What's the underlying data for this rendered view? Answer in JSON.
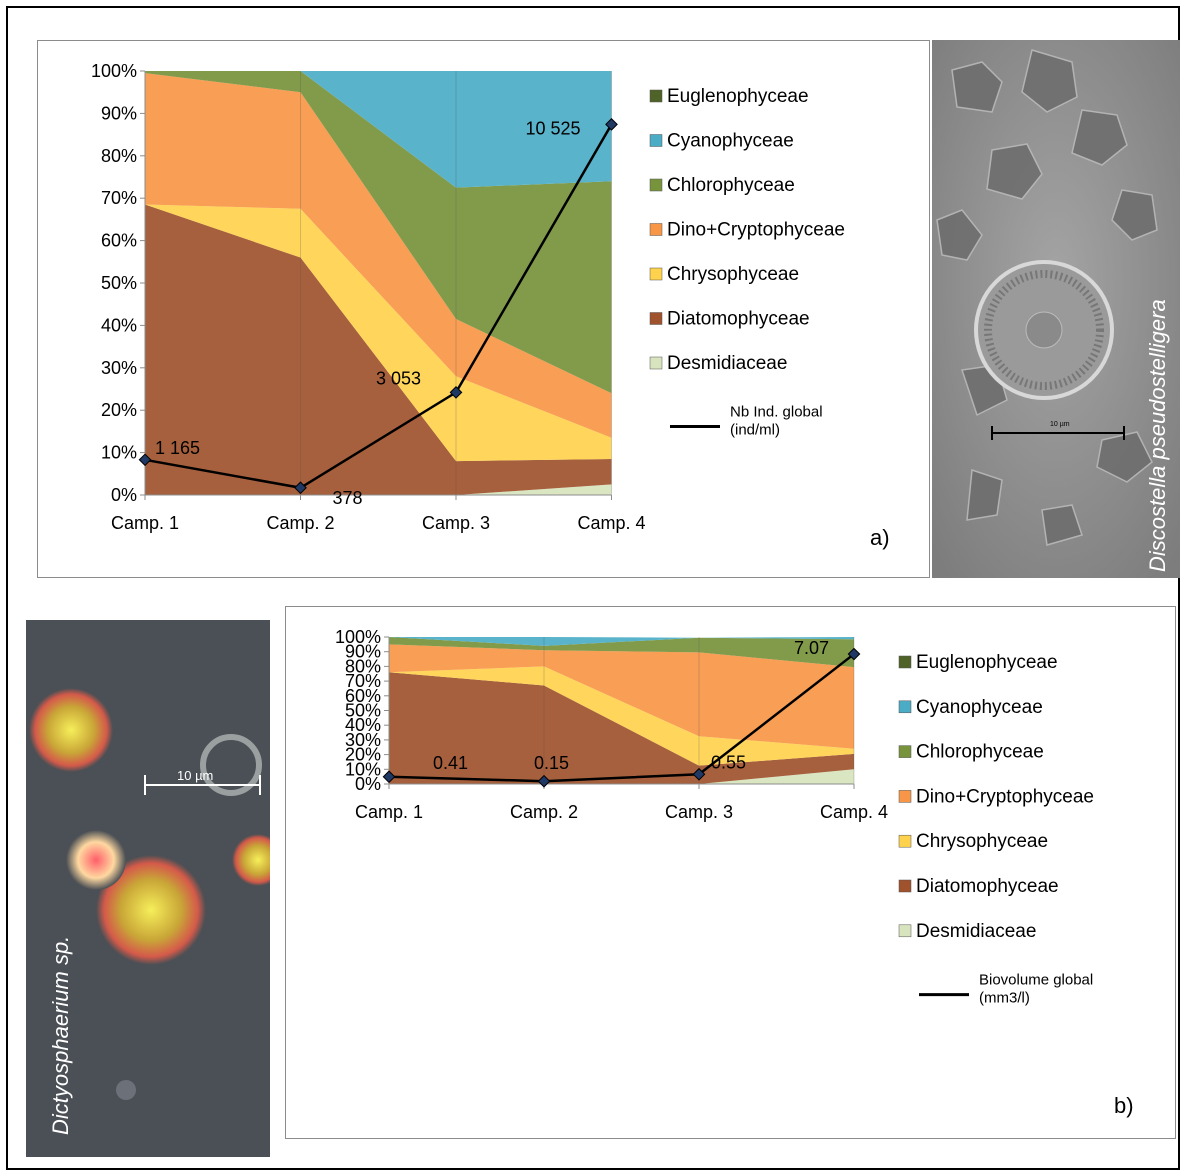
{
  "chart_data": [
    {
      "type": "area",
      "panel_label": "a)",
      "categories": [
        "Camp. 1",
        "Camp. 2",
        "Camp. 3",
        "Camp. 4"
      ],
      "ylim": [
        0,
        100
      ],
      "yticks": [
        "0%",
        "10%",
        "20%",
        "30%",
        "40%",
        "50%",
        "60%",
        "70%",
        "80%",
        "90%",
        "100%"
      ],
      "stacked_percent": true,
      "series": [
        {
          "name": "Desmidiaceae",
          "color": "#d7e4bd",
          "values": [
            0,
            0,
            0,
            2.5
          ]
        },
        {
          "name": "Diatomophyceae",
          "color": "#a0522d",
          "values": [
            68.5,
            56,
            8,
            6
          ]
        },
        {
          "name": "Chrysophyceae",
          "color": "#ffd24d",
          "values": [
            0,
            11.5,
            20,
            5
          ]
        },
        {
          "name": "Dino+Cryptophyceae",
          "color": "#f79646",
          "values": [
            31,
            27.5,
            13.5,
            10.5
          ]
        },
        {
          "name": "Chlorophyceae",
          "color": "#77933c",
          "values": [
            0.5,
            5,
            31,
            50
          ]
        },
        {
          "name": "Cyanophyceae",
          "color": "#4bacc6",
          "values": [
            0,
            0,
            27.5,
            26
          ]
        },
        {
          "name": "Euglenophyceae",
          "color": "#4f6228",
          "values": [
            0,
            0,
            0,
            0
          ]
        }
      ],
      "line": {
        "name": "Nb Ind. global (ind/ml)",
        "legend_label": [
          "Nb Ind. global",
          "(ind/ml)"
        ],
        "values_pct_axis": [
          8.3,
          1.7,
          24.2,
          87.4
        ],
        "labels": [
          "1 165",
          "378",
          "3 053",
          "10 525"
        ]
      }
    },
    {
      "type": "area",
      "panel_label": "b)",
      "categories": [
        "Camp. 1",
        "Camp. 2",
        "Camp. 3",
        "Camp. 4"
      ],
      "ylim": [
        0,
        100
      ],
      "yticks": [
        "0%",
        "10%",
        "20%",
        "30%",
        "40%",
        "50%",
        "60%",
        "70%",
        "80%",
        "90%",
        "100%"
      ],
      "stacked_percent": true,
      "series": [
        {
          "name": "Desmidiaceae",
          "color": "#d7e4bd",
          "values": [
            0,
            0,
            0,
            10
          ]
        },
        {
          "name": "Diatomophyceae",
          "color": "#a0522d",
          "values": [
            76,
            67,
            12.5,
            10.5
          ]
        },
        {
          "name": "Chrysophyceae",
          "color": "#ffd24d",
          "values": [
            0,
            13,
            20,
            3.5
          ]
        },
        {
          "name": "Dino+Cryptophyceae",
          "color": "#f79646",
          "values": [
            19,
            11,
            57,
            55.5
          ]
        },
        {
          "name": "Chlorophyceae",
          "color": "#77933c",
          "values": [
            5,
            3,
            10,
            19
          ]
        },
        {
          "name": "Cyanophyceae",
          "color": "#4bacc6",
          "values": [
            0,
            6,
            0,
            1.5
          ]
        },
        {
          "name": "Euglenophyceae",
          "color": "#4f6228",
          "values": [
            0,
            0,
            0,
            0
          ]
        }
      ],
      "line": {
        "name": "Biovolume global (mm3/l)",
        "legend_label": [
          "Biovolume  global",
          "(mm3/l)"
        ],
        "values_pct_axis": [
          4.9,
          1.9,
          6.6,
          88.4
        ],
        "labels": [
          "0.41",
          "0.15",
          "0.55",
          "7.07"
        ]
      }
    }
  ],
  "photos": {
    "a": {
      "species_label": "Discostella pseudostelligera",
      "scale_label": "10 µm"
    },
    "b": {
      "species_label": "Dictyosphaerium sp.",
      "scale_label": "10 µm"
    }
  }
}
